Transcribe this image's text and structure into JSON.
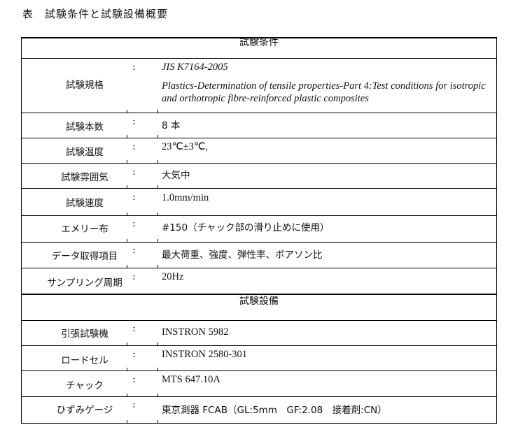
{
  "title": "表　試験条件と試験設備概要",
  "sections": [
    {
      "heading": "試験条件",
      "rows": [
        {
          "label": "試験規格",
          "colon": ":",
          "lines": [
            "JIS K7164-2005",
            "Plastics-Determination of tensile properties-Part 4:Test conditions for isotropic and orthotropic fibre-reinforced plastic composites"
          ]
        },
        {
          "label": "試験本数",
          "colon": ":",
          "value": "8 本"
        },
        {
          "label": "試験温度",
          "colon": ":",
          "value": "23℃±3℃,"
        },
        {
          "label": "試験雰囲気",
          "colon": ":",
          "value": "大気中"
        },
        {
          "label": "試験速度",
          "colon": ":",
          "value": "1.0mm/min"
        },
        {
          "label": "エメリー布",
          "colon": ":",
          "value": "#150（チャック部の滑り止めに使用）"
        },
        {
          "label": "データ取得項目",
          "colon": ":",
          "value": "最大荷重、強度、弾性率、ポアソン比"
        },
        {
          "label": "サンプリング周期",
          "colon": ":",
          "value": "20Hz"
        }
      ]
    },
    {
      "heading": "試験設備",
      "rows": [
        {
          "label": "引張試験機",
          "colon": ":",
          "value": "INSTRON 5982"
        },
        {
          "label": "ロードセル",
          "colon": ":",
          "value": "INSTRON 2580-301"
        },
        {
          "label": "チャック",
          "colon": ":",
          "value": "MTS 647.10A"
        },
        {
          "label": "ひずみゲージ",
          "colon": ":",
          "value": "東京測器  FCAB（GL:5mm　GF:2.08　接着剤:CN）"
        }
      ]
    }
  ]
}
